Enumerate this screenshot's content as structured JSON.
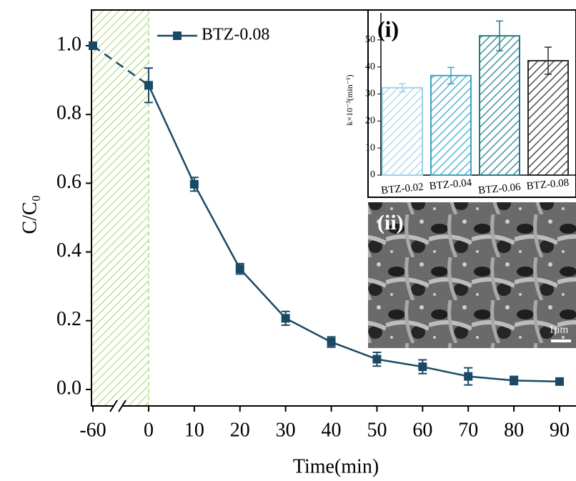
{
  "chart_data": [
    {
      "type": "line",
      "xlabel": "Time(min)",
      "ylabel": "C/C₀",
      "x": [
        -60,
        0,
        10,
        20,
        30,
        40,
        50,
        60,
        70,
        80,
        90
      ],
      "series": [
        {
          "name": "BTZ-0.08",
          "color": "#1b4965",
          "values": [
            1.0,
            0.885,
            0.597,
            0.351,
            0.207,
            0.138,
            0.088,
            0.066,
            0.038,
            0.026,
            0.023
          ],
          "errors": [
            0,
            0.05,
            0.02,
            0.015,
            0.02,
            0.015,
            0.02,
            0.02,
            0.025,
            0.012,
            0.005
          ]
        }
      ],
      "ylim": [
        -0.048,
        1.104
      ],
      "yticks": [
        {
          "value": 0,
          "label": "0.0"
        },
        0.2,
        0.4,
        0.6,
        0.8,
        {
          "value": 1,
          "label": "1.0"
        }
      ],
      "xticks": [
        -60,
        0,
        10,
        20,
        30,
        40,
        50,
        60,
        70,
        80,
        90
      ],
      "shade_color": "#b5d98a"
    },
    {
      "type": "bar",
      "title": "(i)",
      "ylabel": "k×10⁻³(min⁻¹)",
      "categories": [
        "BTZ-0.02",
        "BTZ-0.04",
        "BTZ-0.06",
        "BTZ-0.08"
      ],
      "values": [
        32.3,
        36.8,
        51.5,
        42.3
      ],
      "errors": [
        1.5,
        3,
        5.5,
        5
      ],
      "colors": [
        "#9fd3e6",
        "#3aa5c4",
        "#1e7d88",
        "#2b2b2b"
      ],
      "ylim": [
        0,
        60
      ],
      "yticks": [
        0,
        10,
        20,
        30,
        40,
        50
      ]
    }
  ],
  "image": {
    "label": "(ii)",
    "scale_bar": "1μm"
  }
}
